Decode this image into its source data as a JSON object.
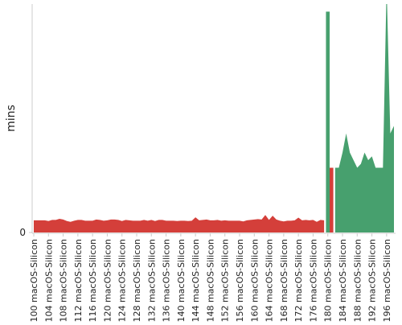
{
  "chart_data": {
    "type": "area",
    "y_label": "mins",
    "ylim": [
      0,
      60
    ],
    "yticks": [
      0
    ],
    "categories": [
      "#100 macOS-Silicon",
      null,
      null,
      null,
      "#104 macOS-Silicon",
      null,
      null,
      null,
      "#108 macOS-Silicon",
      null,
      null,
      null,
      "#112 macOS-Silicon",
      null,
      null,
      null,
      "#116 macOS-Silicon",
      null,
      null,
      null,
      "#120 macOS-Silicon",
      null,
      null,
      null,
      "#124 macOS-Silicon",
      null,
      null,
      null,
      "#128 macOS-Silicon",
      null,
      null,
      null,
      "#132 macOS-Silicon",
      null,
      null,
      null,
      "#136 macOS-Silicon",
      null,
      null,
      null,
      "#140 macOS-Silicon",
      null,
      null,
      null,
      "#144 macOS-Silicon",
      null,
      null,
      null,
      "#148 macOS-Silicon",
      null,
      null,
      null,
      "#152 macOS-Silicon",
      null,
      null,
      null,
      "#156 macOS-Silicon",
      null,
      null,
      null,
      "#160 macOS-Silicon",
      null,
      null,
      null,
      "#164 macOS-Silicon",
      null,
      null,
      null,
      "#168 macOS-Silicon",
      null,
      null,
      null,
      "#172 macOS-Silicon",
      null,
      null,
      null,
      "#176 macOS-Silicon",
      null,
      null,
      null,
      "#180 macOS-Silicon",
      null,
      null,
      null,
      "#184 macOS-Silicon",
      null,
      null,
      null,
      "#188 macOS-Silicon",
      null,
      null,
      null,
      "#192 macOS-Silicon",
      null,
      null,
      null,
      "#196 macOS-Silicon",
      null,
      null
    ],
    "series": [
      {
        "color": "#d43f3a",
        "values": [
          3.2,
          3.2,
          3.2,
          3.2,
          3.0,
          3.3,
          3.3,
          3.6,
          3.4,
          3.0,
          2.8,
          3.1,
          3.3,
          3.3,
          3.1,
          3.1,
          3.1,
          3.4,
          3.3,
          3.1,
          3.2,
          3.4,
          3.4,
          3.3,
          3.0,
          3.3,
          3.2,
          3.1,
          3.1,
          3.1,
          3.3,
          3.1,
          3.3,
          3.0,
          3.3,
          3.3,
          3.1,
          3.1,
          3.1,
          3.0,
          3.1,
          3.1,
          3.0,
          3.1,
          4.0,
          3.2,
          3.3,
          3.4,
          3.2,
          3.2,
          3.3,
          3.1,
          3.2,
          3.1,
          3.1,
          3.1,
          3.1,
          2.9,
          3.2,
          3.3,
          3.4,
          3.5,
          3.4,
          4.6,
          3.3,
          4.4,
          3.4,
          3.1,
          2.9,
          3.1,
          3.1,
          3.2,
          3.9,
          3.2,
          3.3,
          3.2,
          3.3,
          2.8,
          3.3,
          3.2,
          null,
          17,
          null,
          null,
          null,
          null,
          null,
          null,
          null,
          null,
          null,
          null,
          null,
          null,
          null,
          null,
          null,
          null,
          null
        ]
      },
      {
        "color": "#47a06e",
        "values": [
          null,
          null,
          null,
          null,
          null,
          null,
          null,
          null,
          null,
          null,
          null,
          null,
          null,
          null,
          null,
          null,
          null,
          null,
          null,
          null,
          null,
          null,
          null,
          null,
          null,
          null,
          null,
          null,
          null,
          null,
          null,
          null,
          null,
          null,
          null,
          null,
          null,
          null,
          null,
          null,
          null,
          null,
          null,
          null,
          null,
          null,
          null,
          null,
          null,
          null,
          null,
          null,
          null,
          null,
          null,
          null,
          null,
          null,
          null,
          null,
          null,
          null,
          null,
          null,
          null,
          null,
          null,
          null,
          null,
          null,
          null,
          null,
          null,
          null,
          null,
          null,
          null,
          null,
          null,
          null,
          58,
          null,
          17,
          17,
          21,
          26,
          21,
          19,
          17,
          18,
          21,
          19,
          20,
          17,
          17,
          17,
          65,
          26,
          28
        ]
      }
    ]
  }
}
